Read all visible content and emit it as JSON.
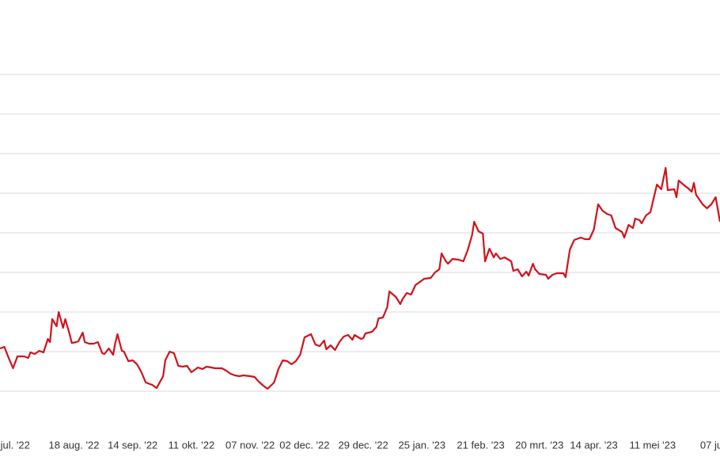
{
  "chart_data": {
    "type": "line",
    "x": [
      -7,
      -5,
      -3,
      -1,
      1,
      4,
      6,
      7,
      9,
      11,
      13,
      15,
      16,
      17,
      19,
      20,
      22,
      23,
      25,
      26,
      28,
      29,
      31,
      32,
      34,
      36,
      38,
      40,
      41,
      43,
      45,
      46,
      47,
      49,
      50,
      52,
      54,
      56,
      58,
      60,
      63,
      65,
      68,
      69,
      71,
      73,
      75,
      77,
      79,
      81,
      84,
      86,
      88,
      90,
      92,
      95,
      97,
      99,
      101,
      103,
      105,
      108,
      110,
      112,
      114,
      116,
      119,
      121,
      123,
      125,
      127,
      129,
      131,
      133,
      136,
      138,
      140,
      142,
      143,
      145,
      147,
      149,
      151,
      153,
      155,
      156,
      159,
      160,
      161,
      164,
      166,
      167,
      169,
      171,
      172,
      175,
      177,
      178,
      180,
      182,
      184,
      186,
      188,
      191,
      193,
      195,
      196,
      198,
      199,
      201,
      204,
      206,
      208,
      210,
      211,
      213,
      215,
      216,
      218,
      220,
      221,
      223,
      225,
      228,
      229,
      231,
      233,
      235,
      236,
      238,
      239,
      241,
      244,
      245,
      247,
      249,
      252,
      253,
      255,
      257,
      260,
      262,
      264,
      266,
      268,
      270,
      272,
      274,
      276,
      279,
      280,
      282,
      284,
      285,
      287,
      288,
      290,
      292,
      295,
      297,
      299,
      300,
      303,
      304,
      305,
      308,
      309,
      311,
      312,
      313,
      316,
      318,
      320,
      322,
      324
    ],
    "series": [
      {
        "color": "#d0121b",
        "values": [
          1.08,
          1.12,
          0.84,
          0.58,
          0.88,
          0.88,
          0.84,
          0.98,
          0.94,
          1.02,
          0.98,
          1.32,
          1.24,
          1.82,
          1.64,
          2.0,
          1.6,
          1.82,
          1.44,
          1.22,
          1.24,
          1.26,
          1.48,
          1.24,
          1.2,
          1.2,
          1.24,
          0.96,
          0.94,
          1.08,
          0.92,
          1.22,
          1.44,
          1.02,
          1.0,
          0.76,
          0.78,
          0.68,
          0.48,
          0.22,
          0.16,
          0.08,
          0.38,
          0.78,
          1.0,
          0.96,
          0.64,
          0.62,
          0.64,
          0.48,
          0.6,
          0.56,
          0.62,
          0.6,
          0.58,
          0.58,
          0.52,
          0.44,
          0.4,
          0.38,
          0.4,
          0.38,
          0.36,
          0.24,
          0.14,
          0.06,
          0.22,
          0.56,
          0.78,
          0.76,
          0.68,
          0.76,
          0.92,
          1.36,
          1.44,
          1.18,
          1.14,
          1.28,
          1.06,
          1.16,
          1.04,
          1.24,
          1.38,
          1.42,
          1.3,
          1.42,
          1.32,
          1.34,
          1.46,
          1.5,
          1.62,
          1.84,
          1.86,
          2.12,
          2.52,
          2.38,
          2.2,
          2.32,
          2.48,
          2.44,
          2.68,
          2.76,
          2.84,
          2.86,
          3.0,
          3.08,
          3.48,
          3.28,
          3.22,
          3.34,
          3.32,
          3.28,
          3.56,
          3.94,
          4.28,
          4.04,
          3.98,
          3.28,
          3.6,
          3.38,
          3.48,
          3.34,
          3.38,
          3.28,
          3.04,
          3.08,
          2.9,
          3.02,
          2.92,
          3.22,
          3.08,
          2.96,
          2.94,
          2.84,
          2.94,
          2.98,
          2.98,
          2.88,
          3.58,
          3.82,
          3.88,
          3.84,
          3.84,
          4.08,
          4.72,
          4.56,
          4.48,
          4.44,
          4.12,
          4.02,
          3.88,
          4.2,
          4.12,
          4.36,
          4.32,
          4.24,
          4.44,
          4.52,
          5.22,
          5.1,
          5.64,
          5.08,
          5.1,
          4.9,
          5.32,
          5.18,
          5.14,
          5.04,
          5.26,
          4.96,
          4.72,
          4.62,
          4.72,
          4.9,
          4.28
        ]
      }
    ],
    "xlim": [
      -7,
      324
    ],
    "xticks": [
      {
        "value": 0,
        "label": "jul. '22"
      },
      {
        "value": 27,
        "label": "18 aug. '22"
      },
      {
        "value": 54,
        "label": "14 sep. '22"
      },
      {
        "value": 81,
        "label": "11 okt. '22"
      },
      {
        "value": 108,
        "label": "07 nov. '22"
      },
      {
        "value": 133,
        "label": "02 dec. '22"
      },
      {
        "value": 160,
        "label": "29 dec. '22"
      },
      {
        "value": 187,
        "label": "25 jan. '23"
      },
      {
        "value": 214,
        "label": "21 feb. '23"
      },
      {
        "value": 241,
        "label": "20 mrt. '23"
      },
      {
        "value": 266,
        "label": "14 apr. '23"
      },
      {
        "value": 293,
        "label": "11 mei '23"
      },
      {
        "value": 320,
        "label": "07 ju"
      }
    ],
    "ylim": [
      -1,
      9
    ],
    "yticks": [
      0,
      1,
      2,
      3,
      4,
      5,
      6,
      7,
      8
    ],
    "grid": true
  }
}
